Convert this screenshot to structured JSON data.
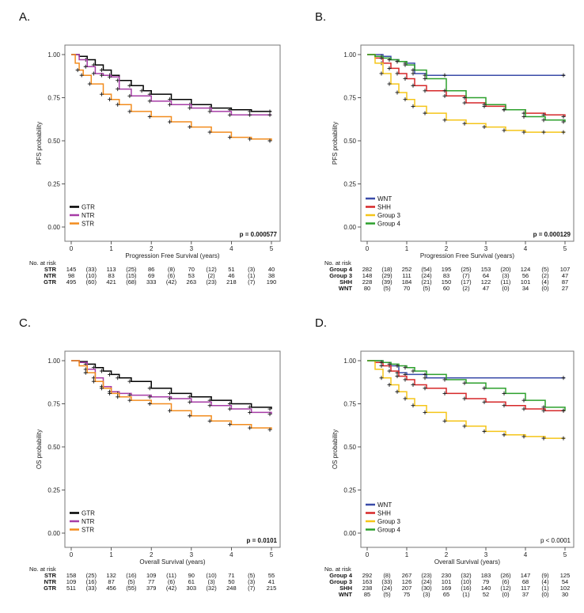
{
  "chart_data": [
    {
      "panel": "A.",
      "type": "line",
      "ylabel": "PFS probability",
      "xlabel": "Progression Free Survival (years)",
      "xlim": [
        0,
        5
      ],
      "ylim": [
        0,
        1
      ],
      "xticks": [
        "0",
        "1",
        "2",
        "3",
        "4",
        "5"
      ],
      "yticks": [
        "0.00",
        "0.25",
        "0.50",
        "0.75",
        "1.00"
      ],
      "pvalue": "p = 0.000577",
      "pvalue_bold": true,
      "legend_position": "bottom-left",
      "series": [
        {
          "name": "GTR",
          "color": "#000000",
          "x": [
            0,
            0.2,
            0.4,
            0.6,
            0.8,
            1.0,
            1.2,
            1.5,
            1.8,
            2.0,
            2.5,
            3.0,
            3.5,
            4.0,
            4.5,
            5.0
          ],
          "y": [
            1.0,
            0.99,
            0.97,
            0.94,
            0.91,
            0.88,
            0.85,
            0.82,
            0.79,
            0.77,
            0.74,
            0.71,
            0.69,
            0.68,
            0.67,
            0.67
          ]
        },
        {
          "name": "NTR",
          "color": "#a63ca6",
          "x": [
            0,
            0.2,
            0.4,
            0.6,
            0.8,
            1.0,
            1.2,
            1.5,
            2.0,
            2.5,
            3.0,
            3.5,
            4.0,
            4.5,
            5.0
          ],
          "y": [
            1.0,
            0.97,
            0.93,
            0.89,
            0.88,
            0.87,
            0.8,
            0.76,
            0.73,
            0.71,
            0.69,
            0.67,
            0.65,
            0.65,
            0.65
          ]
        },
        {
          "name": "STR",
          "color": "#f28c1e",
          "x": [
            0,
            0.1,
            0.2,
            0.3,
            0.5,
            0.8,
            1.0,
            1.2,
            1.5,
            2.0,
            2.5,
            3.0,
            3.5,
            4.0,
            4.5,
            5.0
          ],
          "y": [
            1.0,
            0.95,
            0.91,
            0.88,
            0.83,
            0.77,
            0.74,
            0.71,
            0.67,
            0.64,
            0.61,
            0.58,
            0.55,
            0.52,
            0.51,
            0.5
          ]
        }
      ],
      "risk": {
        "title": "No. at risk",
        "x": [
          0,
          0.5,
          1,
          1.5,
          2,
          2.5,
          3,
          3.5,
          4,
          4.5,
          5
        ],
        "rows": [
          {
            "label": "STR",
            "values": [
              "145",
              "(33)",
              "113",
              "(25)",
              "86",
              "(8)",
              "70",
              "(12)",
              "51",
              "(3)",
              "40"
            ]
          },
          {
            "label": "NTR",
            "values": [
              "98",
              "(10)",
              "83",
              "(15)",
              "69",
              "(6)",
              "53",
              "(2)",
              "46",
              "(1)",
              "38"
            ]
          },
          {
            "label": "GTR",
            "values": [
              "495",
              "(60)",
              "421",
              "(68)",
              "333",
              "(42)",
              "263",
              "(23)",
              "218",
              "(7)",
              "190"
            ]
          }
        ]
      }
    },
    {
      "panel": "B.",
      "type": "line",
      "ylabel": "PFS probability",
      "xlabel": "Progression Free Survival (years)",
      "xlim": [
        0,
        5
      ],
      "ylim": [
        0,
        1
      ],
      "xticks": [
        "0",
        "1",
        "2",
        "3",
        "4",
        "5"
      ],
      "yticks": [
        "0.00",
        "0.25",
        "0.50",
        "0.75",
        "1.00"
      ],
      "pvalue": "p = 0.000129",
      "pvalue_bold": true,
      "legend_position": "bottom-left",
      "series": [
        {
          "name": "WNT",
          "color": "#3a4ba8",
          "x": [
            0,
            0.2,
            0.4,
            0.6,
            0.8,
            1.0,
            1.2,
            1.5,
            2.0,
            5.0
          ],
          "y": [
            1.0,
            1.0,
            0.99,
            0.97,
            0.96,
            0.95,
            0.89,
            0.88,
            0.88,
            0.88
          ]
        },
        {
          "name": "SHH",
          "color": "#d62728",
          "x": [
            0,
            0.2,
            0.4,
            0.6,
            0.8,
            1.0,
            1.2,
            1.5,
            2.0,
            2.5,
            3.0,
            3.5,
            4.0,
            4.5,
            5.0
          ],
          "y": [
            1.0,
            0.98,
            0.95,
            0.92,
            0.89,
            0.86,
            0.82,
            0.79,
            0.76,
            0.72,
            0.7,
            0.68,
            0.66,
            0.65,
            0.64
          ]
        },
        {
          "name": "Group 3",
          "color": "#f5c518",
          "x": [
            0,
            0.2,
            0.4,
            0.6,
            0.8,
            1.0,
            1.2,
            1.5,
            2.0,
            2.5,
            3.0,
            3.5,
            4.0,
            4.5,
            5.0
          ],
          "y": [
            1.0,
            0.95,
            0.89,
            0.83,
            0.78,
            0.74,
            0.7,
            0.66,
            0.62,
            0.6,
            0.58,
            0.56,
            0.55,
            0.55,
            0.55
          ]
        },
        {
          "name": "Group 4",
          "color": "#2ca02c",
          "x": [
            0,
            0.2,
            0.4,
            0.6,
            0.8,
            1.0,
            1.2,
            1.5,
            2.0,
            2.5,
            3.0,
            3.5,
            4.0,
            4.5,
            5.0
          ],
          "y": [
            1.0,
            0.99,
            0.98,
            0.97,
            0.96,
            0.94,
            0.91,
            0.86,
            0.79,
            0.75,
            0.71,
            0.68,
            0.64,
            0.62,
            0.61
          ]
        }
      ],
      "risk": {
        "title": "No. at risk",
        "x": [
          0,
          0.5,
          1,
          1.5,
          2,
          2.5,
          3,
          3.5,
          4,
          4.5,
          5
        ],
        "rows": [
          {
            "label": "Group 4",
            "values": [
              "282",
              "(18)",
              "252",
              "(54)",
              "195",
              "(25)",
              "153",
              "(20)",
              "124",
              "(5)",
              "107"
            ]
          },
          {
            "label": "Group 3",
            "values": [
              "148",
              "(29)",
              "111",
              "(24)",
              "83",
              "(7)",
              "64",
              "(3)",
              "56",
              "(2)",
              "47"
            ]
          },
          {
            "label": "SHH",
            "values": [
              "228",
              "(39)",
              "184",
              "(21)",
              "150",
              "(17)",
              "122",
              "(11)",
              "101",
              "(4)",
              "87"
            ]
          },
          {
            "label": "WNT",
            "values": [
              "80",
              "(5)",
              "70",
              "(5)",
              "60",
              "(2)",
              "47",
              "(0)",
              "34",
              "(0)",
              "27"
            ]
          }
        ]
      }
    },
    {
      "panel": "C.",
      "type": "line",
      "ylabel": "OS probability",
      "xlabel": "Overall Survival (years)",
      "xlim": [
        0,
        5
      ],
      "ylim": [
        0,
        1
      ],
      "xticks": [
        "0",
        "1",
        "2",
        "3",
        "4",
        "5"
      ],
      "yticks": [
        "0.00",
        "0.25",
        "0.50",
        "0.75",
        "1.00"
      ],
      "pvalue": "p = 0.0101",
      "pvalue_bold": true,
      "legend_position": "bottom-left",
      "series": [
        {
          "name": "GTR",
          "color": "#000000",
          "x": [
            0,
            0.2,
            0.4,
            0.6,
            0.8,
            1.0,
            1.2,
            1.5,
            2.0,
            2.5,
            3.0,
            3.5,
            4.0,
            4.5,
            5.0
          ],
          "y": [
            1.0,
            0.995,
            0.98,
            0.96,
            0.94,
            0.92,
            0.9,
            0.88,
            0.84,
            0.81,
            0.79,
            0.77,
            0.75,
            0.73,
            0.72
          ]
        },
        {
          "name": "NTR",
          "color": "#a63ca6",
          "x": [
            0,
            0.2,
            0.4,
            0.6,
            0.8,
            1.0,
            1.2,
            1.5,
            2.0,
            2.5,
            3.0,
            3.5,
            4.0,
            4.5,
            5.0
          ],
          "y": [
            1.0,
            0.99,
            0.95,
            0.9,
            0.85,
            0.82,
            0.81,
            0.8,
            0.79,
            0.78,
            0.76,
            0.74,
            0.72,
            0.7,
            0.69
          ]
        },
        {
          "name": "STR",
          "color": "#f28c1e",
          "x": [
            0,
            0.2,
            0.4,
            0.6,
            0.8,
            1.0,
            1.2,
            1.5,
            2.0,
            2.5,
            3.0,
            3.5,
            4.0,
            4.5,
            5.0
          ],
          "y": [
            1.0,
            0.97,
            0.93,
            0.88,
            0.84,
            0.81,
            0.79,
            0.77,
            0.75,
            0.71,
            0.68,
            0.65,
            0.63,
            0.61,
            0.6
          ]
        }
      ],
      "risk": {
        "title": "No. at risk",
        "x": [
          0,
          0.5,
          1,
          1.5,
          2,
          2.5,
          3,
          3.5,
          4,
          4.5,
          5
        ],
        "rows": [
          {
            "label": "STR",
            "values": [
              "158",
              "(25)",
              "132",
              "(16)",
              "109",
              "(11)",
              "90",
              "(10)",
              "71",
              "(5)",
              "55"
            ]
          },
          {
            "label": "NTR",
            "values": [
              "109",
              "(16)",
              "87",
              "(5)",
              "77",
              "(6)",
              "61",
              "(3)",
              "50",
              "(3)",
              "41"
            ]
          },
          {
            "label": "GTR",
            "values": [
              "511",
              "(33)",
              "456",
              "(55)",
              "379",
              "(42)",
              "303",
              "(32)",
              "248",
              "(7)",
              "215"
            ]
          }
        ]
      }
    },
    {
      "panel": "D.",
      "type": "line",
      "ylabel": "OS probability",
      "xlabel": "Overall Survival (years)",
      "xlim": [
        0,
        5
      ],
      "ylim": [
        0,
        1
      ],
      "xticks": [
        "0",
        "1",
        "2",
        "3",
        "4",
        "5"
      ],
      "yticks": [
        "0.00",
        "0.25",
        "0.50",
        "0.75",
        "1.00"
      ],
      "pvalue": "p < 0.0001",
      "pvalue_bold": false,
      "legend_position": "bottom-left",
      "series": [
        {
          "name": "WNT",
          "color": "#3a4ba8",
          "x": [
            0,
            0.2,
            0.4,
            0.6,
            0.8,
            1.0,
            1.5,
            5.0
          ],
          "y": [
            1.0,
            1.0,
            0.99,
            0.97,
            0.93,
            0.92,
            0.9,
            0.9
          ]
        },
        {
          "name": "SHH",
          "color": "#d62728",
          "x": [
            0,
            0.2,
            0.4,
            0.6,
            0.8,
            1.0,
            1.2,
            1.5,
            2.0,
            2.5,
            3.0,
            3.5,
            4.0,
            4.5,
            5.0
          ],
          "y": [
            1.0,
            0.99,
            0.97,
            0.94,
            0.91,
            0.89,
            0.86,
            0.84,
            0.81,
            0.78,
            0.76,
            0.74,
            0.72,
            0.71,
            0.71
          ]
        },
        {
          "name": "Group 3",
          "color": "#f5c518",
          "x": [
            0,
            0.2,
            0.4,
            0.6,
            0.8,
            1.0,
            1.2,
            1.5,
            2.0,
            2.5,
            3.0,
            3.5,
            4.0,
            4.5,
            5.0
          ],
          "y": [
            1.0,
            0.95,
            0.9,
            0.86,
            0.82,
            0.78,
            0.74,
            0.7,
            0.65,
            0.62,
            0.59,
            0.57,
            0.56,
            0.55,
            0.55
          ]
        },
        {
          "name": "Group 4",
          "color": "#2ca02c",
          "x": [
            0,
            0.2,
            0.4,
            0.6,
            0.8,
            1.0,
            1.2,
            1.5,
            2.0,
            2.5,
            3.0,
            3.5,
            4.0,
            4.5,
            5.0
          ],
          "y": [
            1.0,
            1.0,
            0.99,
            0.98,
            0.97,
            0.96,
            0.94,
            0.92,
            0.89,
            0.87,
            0.84,
            0.81,
            0.77,
            0.73,
            0.71
          ]
        }
      ],
      "risk": {
        "title": "No. at risk",
        "x": [
          0,
          0.5,
          1,
          1.5,
          2,
          2.5,
          3,
          3.5,
          4,
          4.5,
          5
        ],
        "rows": [
          {
            "label": "Group 4",
            "values": [
              "292",
              "(8)",
              "267",
              "(23)",
              "230",
              "(32)",
              "183",
              "(26)",
              "147",
              "(9)",
              "125"
            ]
          },
          {
            "label": "Group 3",
            "values": [
              "163",
              "(33)",
              "126",
              "(24)",
              "101",
              "(10)",
              "79",
              "(6)",
              "68",
              "(4)",
              "54"
            ]
          },
          {
            "label": "SHH",
            "values": [
              "238",
              "(24)",
              "207",
              "(30)",
              "169",
              "(16)",
              "140",
              "(12)",
              "117",
              "(1)",
              "102"
            ]
          },
          {
            "label": "WNT",
            "values": [
              "85",
              "(5)",
              "75",
              "(3)",
              "65",
              "(1)",
              "52",
              "(0)",
              "37",
              "(0)",
              "30"
            ]
          }
        ]
      }
    }
  ]
}
